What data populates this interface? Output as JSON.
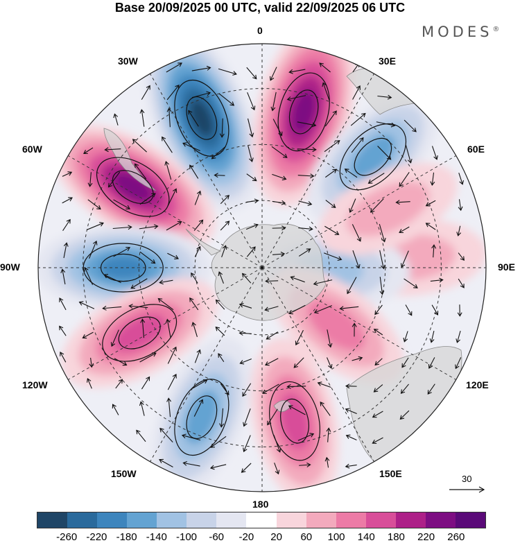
{
  "title": "Base 20/09/2025 00 UTC, valid 22/09/2025 06 UTC",
  "brand": "MODES",
  "brand_mark": "®",
  "longitude_labels": {
    "lon_0": "0",
    "lon_30e": "30E",
    "lon_60e": "60E",
    "lon_90e": "90E",
    "lon_120e": "120E",
    "lon_150e": "150E",
    "lon_180": "180",
    "lon_150w": "150W",
    "lon_120w": "120W",
    "lon_90w": "90W",
    "lon_60w": "60W",
    "lon_30w": "30W"
  },
  "reference_vector": "30",
  "colorbar": {
    "ticks": [
      "-260",
      "-220",
      "-180",
      "-140",
      "-100",
      "-60",
      "-20",
      "20",
      "60",
      "100",
      "140",
      "180",
      "220",
      "260"
    ],
    "colors": [
      "#1f4566",
      "#2a6a9c",
      "#3d85bd",
      "#63a3d2",
      "#a1c2e3",
      "#c8d3e8",
      "#e4e6f1",
      "#ffffff",
      "#f8d5dc",
      "#f3aabd",
      "#ec7ba6",
      "#d84e99",
      "#ad2088",
      "#7d0e82",
      "#5a0a78"
    ]
  },
  "anomalies": [
    {
      "lon": -22,
      "r": 0.72,
      "value": -260
    },
    {
      "lon": 15,
      "r": 0.72,
      "value": 250
    },
    {
      "lon": 45,
      "r": 0.7,
      "value": -140
    },
    {
      "lon": -58,
      "r": 0.68,
      "value": 220
    },
    {
      "lon": -90,
      "r": 0.62,
      "value": -180
    },
    {
      "lon": -118,
      "r": 0.62,
      "value": 160
    },
    {
      "lon": -158,
      "r": 0.72,
      "value": -150
    },
    {
      "lon": 168,
      "r": 0.7,
      "value": 150
    },
    {
      "lon": 86,
      "r": 0.66,
      "value": 90
    },
    {
      "lon": 92,
      "r": 0.3,
      "value": -120
    },
    {
      "lon": 128,
      "r": 0.42,
      "value": 110
    },
    {
      "lon": 65,
      "r": 0.62,
      "value": 70
    }
  ]
}
